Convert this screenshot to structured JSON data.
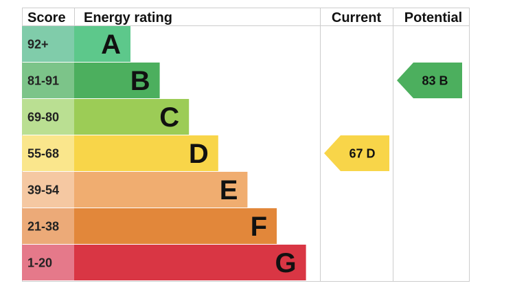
{
  "chart_data": {
    "type": "table",
    "headers": {
      "score": "Score",
      "rating": "Energy rating",
      "current": "Current",
      "potential": "Potential"
    },
    "bands": [
      {
        "letter": "A",
        "range": "92+",
        "color": "#5dc88b",
        "score_color": "#80ccaa",
        "min": 92
      },
      {
        "letter": "B",
        "range": "81-91",
        "color": "#4caf5e",
        "score_color": "#7cc489",
        "min": 81
      },
      {
        "letter": "C",
        "range": "69-80",
        "color": "#9ccc56",
        "score_color": "#badf92",
        "min": 69
      },
      {
        "letter": "D",
        "range": "55-68",
        "color": "#f8d549",
        "score_color": "#fae68c",
        "min": 55
      },
      {
        "letter": "E",
        "range": "39-54",
        "color": "#f0ad70",
        "score_color": "#f5c8a2",
        "min": 39
      },
      {
        "letter": "F",
        "range": "21-38",
        "color": "#e2873a",
        "score_color": "#ecaa78",
        "min": 21
      },
      {
        "letter": "G",
        "range": "1-20",
        "color": "#d93644",
        "score_color": "#e5798a",
        "min": 1
      }
    ],
    "current": {
      "value": 67,
      "letter": "D",
      "label": "67 D",
      "color": "#f8d549"
    },
    "potential": {
      "value": 83,
      "letter": "B",
      "label": "83 B",
      "color": "#4caf5e"
    }
  }
}
